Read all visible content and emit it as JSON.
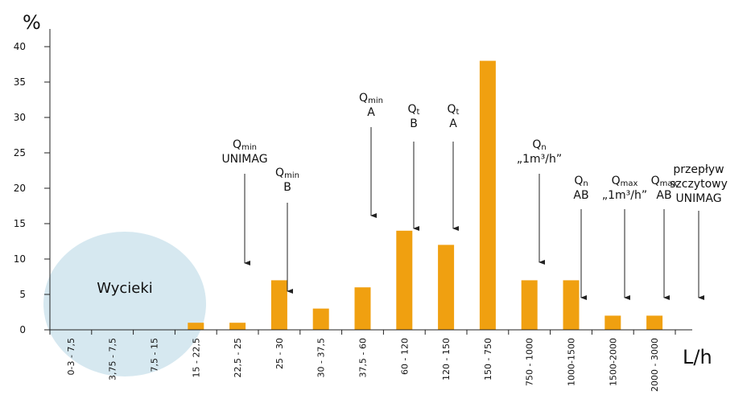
{
  "chart_data": {
    "type": "bar",
    "ylabel": "%",
    "xlabel": "L/h",
    "ylim": [
      0,
      40
    ],
    "yticks": [
      "0",
      "5",
      "10",
      "15",
      "20",
      "25",
      "30",
      "35",
      "40"
    ],
    "grid": false,
    "bar_color": "#F0A010",
    "categories": [
      "0-3 - 7,5",
      "3,75 - 7,5",
      "7,5 - 15",
      "15 - 22,5",
      "22,5 - 25",
      "25 - 30",
      "30 - 37,5",
      "37,5 - 60",
      "60 - 120",
      "120 - 150",
      "150 - 750",
      "750 - 1000",
      "1000-1500",
      "1500-2000",
      "2000 - 3000"
    ],
    "values": [
      0,
      0,
      0,
      1,
      1,
      7,
      3,
      6,
      14,
      12,
      38,
      7,
      7,
      2,
      2
    ],
    "leak_zone": {
      "label": "Wycieki",
      "color": "#D6E8F0"
    },
    "annotations": [
      {
        "id": "qmin-unimag",
        "main": "Q",
        "sub": "min",
        "line2": "UNIMAG"
      },
      {
        "id": "qmin-b",
        "main": "Q",
        "sub": "min",
        "line2": "B"
      },
      {
        "id": "qmin-a",
        "main": "Q",
        "sub": "min",
        "line2": "A"
      },
      {
        "id": "qt-b",
        "main": "Q",
        "sub": "t",
        "line2": "B"
      },
      {
        "id": "qt-a",
        "main": "Q",
        "sub": "t",
        "line2": "A"
      },
      {
        "id": "qn-1m3h",
        "main": "Q",
        "sub": "n",
        "line2": "„1m³/h”"
      },
      {
        "id": "qn-ab",
        "main": "Q",
        "sub": "n",
        "line2": "AB"
      },
      {
        "id": "qmax-1m3h",
        "main": "Q",
        "sub": "max",
        "line2": "„1m³/h”"
      },
      {
        "id": "qmax-ab",
        "main": "Q",
        "sub": "max",
        "line2": "AB"
      },
      {
        "id": "peak-unimag",
        "main": "przepływ",
        "sub": "",
        "line2": "szczytowy",
        "line3": "UNIMAG"
      }
    ]
  }
}
